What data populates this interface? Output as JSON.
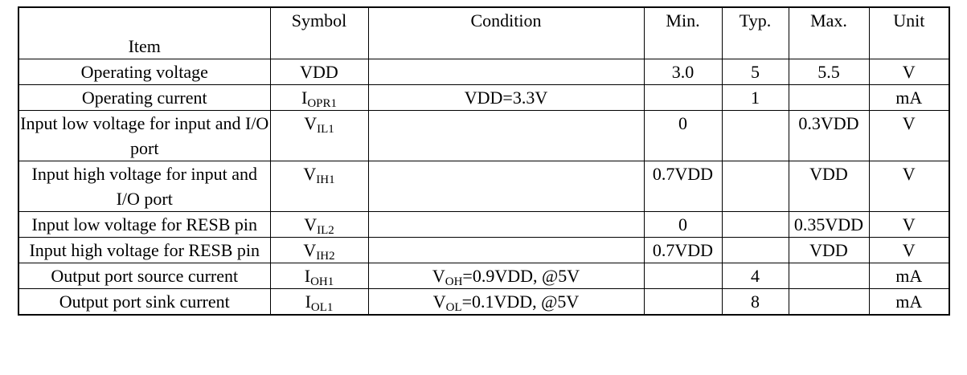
{
  "table": {
    "header": [
      "Item",
      "Symbol",
      "Condition",
      "Min.",
      "Typ.",
      "Max.",
      "Unit"
    ],
    "rows": [
      [
        "Operating voltage",
        "VDD",
        null,
        "3.0",
        "5",
        "5.5",
        "V"
      ],
      [
        "Operating current",
        [
          "I",
          {
            "sub": "OPR1"
          }
        ],
        "VDD=3.3V",
        null,
        "1",
        null,
        "mA"
      ],
      [
        "Input low voltage for input and I/O port",
        [
          "V",
          {
            "sub": "IL1"
          }
        ],
        null,
        "0",
        null,
        "0.3VDD",
        "V"
      ],
      [
        "Input high voltage for input and I/O port",
        [
          "V",
          {
            "sub": "IH1"
          }
        ],
        null,
        "0.7VDD",
        null,
        "VDD",
        "V"
      ],
      [
        "Input low voltage for RESB pin",
        [
          "V",
          {
            "sub": "IL2"
          }
        ],
        null,
        "0",
        null,
        "0.35VDD",
        "V"
      ],
      [
        "Input high voltage for RESB pin",
        [
          "V",
          {
            "sub": "IH2"
          }
        ],
        null,
        "0.7VDD",
        null,
        "VDD",
        "V"
      ],
      [
        "Output port source current",
        [
          "I",
          {
            "sub": "OH1"
          }
        ],
        [
          "V",
          {
            "sub": "OH"
          },
          "=0.9VDD, @5V"
        ],
        null,
        "4",
        null,
        "mA"
      ],
      [
        "Output port sink current",
        [
          "I",
          {
            "sub": "OL1"
          }
        ],
        [
          "V",
          {
            "sub": "OL"
          },
          "=0.1VDD, @5V"
        ],
        null,
        "8",
        null,
        "mA"
      ]
    ]
  }
}
